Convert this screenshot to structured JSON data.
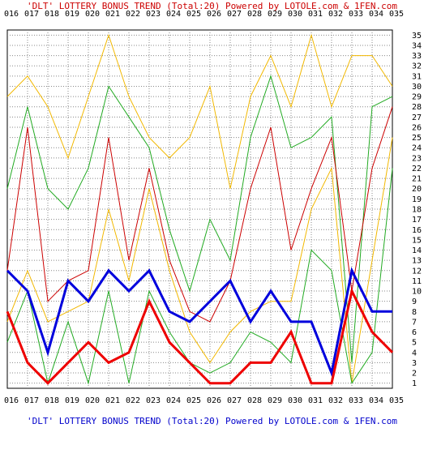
{
  "header": {
    "caption": "'DLT' LOTTERY BONUS TREND (Total:20)  Powered by LOTOLE.com & 1FEN.com"
  },
  "footer": {
    "caption": "'DLT' LOTTERY BONUS TREND (Total:20)  Powered by LOTOLE.com & 1FEN.com"
  },
  "chart_data": {
    "type": "line",
    "title": "'DLT' LOTTERY BONUS TREND (Total:20)",
    "x": [
      "016",
      "017",
      "018",
      "019",
      "020",
      "021",
      "022",
      "023",
      "024",
      "025",
      "026",
      "027",
      "028",
      "029",
      "030",
      "031",
      "032",
      "033",
      "034",
      "035"
    ],
    "y_ticks": [
      "1",
      "2",
      "3",
      "4",
      "5",
      "6",
      "7",
      "8",
      "9",
      "10",
      "11",
      "12",
      "13",
      "14",
      "15",
      "16",
      "17",
      "18",
      "19",
      "20",
      "21",
      "22",
      "23",
      "24",
      "25",
      "26",
      "27",
      "28",
      "29",
      "30",
      "31",
      "32",
      "33",
      "34",
      "35"
    ],
    "ylim": [
      1,
      35
    ],
    "grid": true,
    "series": [
      {
        "color": "#f2b800",
        "width": 1,
        "values": [
          29,
          31,
          28,
          23,
          29,
          35,
          29,
          25,
          23,
          25,
          30,
          20,
          29,
          33,
          28,
          35,
          28,
          33,
          33,
          30
        ]
      },
      {
        "color": "#22aa22",
        "width": 1,
        "values": [
          20,
          28,
          20,
          18,
          22,
          30,
          27,
          24,
          16,
          10,
          17,
          13,
          25,
          31,
          24,
          25,
          27,
          3,
          28,
          29
        ]
      },
      {
        "color": "#cc0000",
        "width": 1,
        "values": [
          12,
          26,
          9,
          11,
          12,
          25,
          13,
          22,
          13,
          8,
          7,
          11,
          20,
          26,
          14,
          20,
          25,
          10,
          22,
          28
        ]
      },
      {
        "color": "#f2b800",
        "width": 1,
        "values": [
          7,
          12,
          7,
          8,
          9,
          18,
          11,
          20,
          12,
          6,
          3,
          6,
          8,
          9,
          9,
          18,
          22,
          1,
          13,
          25
        ]
      },
      {
        "color": "#22aa22",
        "width": 1,
        "values": [
          5,
          10,
          1,
          7,
          1,
          10,
          1,
          10,
          6,
          3,
          2,
          3,
          6,
          5,
          3,
          14,
          12,
          1,
          4,
          22
        ]
      },
      {
        "color": "#0000dd",
        "width": 3,
        "values": [
          12,
          10,
          4,
          11,
          9,
          12,
          10,
          12,
          8,
          7,
          9,
          11,
          7,
          10,
          7,
          7,
          2,
          12,
          8,
          8
        ]
      },
      {
        "color": "#ee0000",
        "width": 3,
        "values": [
          8,
          3,
          1,
          3,
          5,
          3,
          4,
          9,
          5,
          3,
          1,
          1,
          3,
          3,
          6,
          1,
          1,
          10,
          6,
          4
        ]
      }
    ]
  }
}
